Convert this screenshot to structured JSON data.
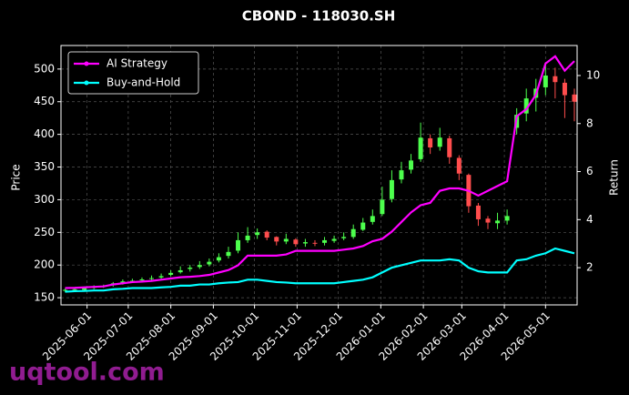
{
  "chart_data": {
    "type": "candlestick",
    "title": "CBOND - 118030.SH",
    "ylabel": "Price",
    "y2label": "Return",
    "watermark": "uqtool.com",
    "up_color": "#4dff4d",
    "down_color": "#ff4d4d",
    "grid": true,
    "legend": "upper left",
    "x": [
      "2025-05-16",
      "2025-05-23",
      "2025-05-30",
      "2025-06-06",
      "2025-06-13",
      "2025-06-20",
      "2025-06-27",
      "2025-07-04",
      "2025-07-11",
      "2025-07-18",
      "2025-07-25",
      "2025-08-01",
      "2025-08-08",
      "2025-08-15",
      "2025-08-22",
      "2025-08-29",
      "2025-09-05",
      "2025-09-12",
      "2025-09-19",
      "2025-09-26",
      "2025-10-03",
      "2025-10-10",
      "2025-10-17",
      "2025-10-24",
      "2025-10-31",
      "2025-11-07",
      "2025-11-14",
      "2025-11-21",
      "2025-11-28",
      "2025-12-05",
      "2025-12-12",
      "2025-12-19",
      "2025-12-26",
      "2026-01-02",
      "2026-01-09",
      "2026-01-16",
      "2026-01-23",
      "2026-01-30",
      "2026-02-06",
      "2026-02-13",
      "2026-02-20",
      "2026-02-27",
      "2026-03-06",
      "2026-03-13",
      "2026-03-20",
      "2026-03-27",
      "2026-04-03",
      "2026-04-10",
      "2026-04-17",
      "2026-04-24",
      "2026-05-01",
      "2026-05-08",
      "2026-05-15",
      "2026-05-22"
    ],
    "open": [
      161,
      163,
      162,
      165,
      167,
      169,
      172,
      175,
      177,
      179,
      181,
      185,
      189,
      194,
      197,
      201,
      207,
      214,
      222,
      238,
      246,
      251,
      243,
      236,
      239,
      233,
      234,
      234,
      237,
      241,
      243,
      254,
      266,
      278,
      301,
      331,
      346,
      362,
      394,
      381,
      394,
      364,
      338,
      291,
      271,
      264,
      268,
      410,
      432,
      456,
      472,
      489,
      479,
      461
    ],
    "high": [
      164,
      166,
      167,
      169,
      170,
      174,
      178,
      179,
      181,
      184,
      187,
      192,
      198,
      200,
      206,
      210,
      218,
      228,
      250,
      258,
      256,
      253,
      244,
      248,
      241,
      240,
      238,
      243,
      245,
      250,
      262,
      272,
      285,
      320,
      345,
      358,
      370,
      418,
      400,
      410,
      398,
      368,
      340,
      295,
      275,
      280,
      285,
      440,
      470,
      485,
      510,
      502,
      485,
      470
    ],
    "low": [
      159,
      160,
      160,
      163,
      165,
      167,
      170,
      173,
      174,
      177,
      179,
      183,
      187,
      190,
      194,
      198,
      204,
      210,
      218,
      234,
      240,
      238,
      230,
      232,
      228,
      228,
      229,
      230,
      234,
      238,
      240,
      252,
      262,
      275,
      296,
      325,
      340,
      358,
      370,
      375,
      355,
      330,
      280,
      260,
      255,
      255,
      262,
      400,
      420,
      435,
      460,
      455,
      425,
      420
    ],
    "close": [
      162,
      163,
      165,
      167,
      168,
      172,
      175,
      176,
      178,
      180,
      183,
      188,
      192,
      196,
      200,
      205,
      212,
      220,
      238,
      245,
      250,
      242,
      236,
      240,
      232,
      235,
      233,
      238,
      240,
      243,
      255,
      265,
      275,
      300,
      330,
      345,
      360,
      395,
      380,
      395,
      365,
      340,
      290,
      270,
      265,
      268,
      275,
      430,
      455,
      470,
      490,
      480,
      460,
      450
    ],
    "series": [
      {
        "name": "AI Strategy",
        "color": "#ff00ff",
        "axis": "y2",
        "values": [
          1.15,
          1.16,
          1.18,
          1.2,
          1.22,
          1.3,
          1.35,
          1.4,
          1.42,
          1.45,
          1.5,
          1.55,
          1.6,
          1.62,
          1.65,
          1.7,
          1.8,
          1.9,
          2.1,
          2.5,
          2.5,
          2.5,
          2.5,
          2.55,
          2.7,
          2.7,
          2.7,
          2.7,
          2.7,
          2.75,
          2.8,
          2.9,
          3.1,
          3.2,
          3.5,
          3.9,
          4.3,
          4.6,
          4.7,
          5.2,
          5.3,
          5.3,
          5.2,
          5.0,
          5.2,
          5.4,
          5.6,
          8.3,
          8.6,
          9.2,
          10.5,
          10.8,
          10.2,
          10.6
        ]
      },
      {
        "name": "Buy-and-Hold",
        "color": "#00ffff",
        "axis": "y2",
        "values": [
          1.0,
          1.02,
          1.03,
          1.05,
          1.05,
          1.1,
          1.12,
          1.15,
          1.15,
          1.15,
          1.18,
          1.2,
          1.25,
          1.25,
          1.3,
          1.3,
          1.35,
          1.38,
          1.4,
          1.5,
          1.5,
          1.45,
          1.4,
          1.38,
          1.35,
          1.35,
          1.35,
          1.35,
          1.35,
          1.4,
          1.45,
          1.5,
          1.6,
          1.8,
          2.0,
          2.1,
          2.2,
          2.3,
          2.3,
          2.3,
          2.35,
          2.3,
          2.0,
          1.85,
          1.8,
          1.8,
          1.8,
          2.3,
          2.35,
          2.5,
          2.6,
          2.8,
          2.7,
          2.6
        ]
      }
    ],
    "xlim": [
      "2025-05-13",
      "2026-05-24"
    ],
    "xticks": [
      "2025-06-01",
      "2025-07-01",
      "2025-08-01",
      "2025-09-01",
      "2025-10-01",
      "2025-11-01",
      "2025-12-01",
      "2026-01-01",
      "2026-02-01",
      "2026-03-01",
      "2026-04-01",
      "2026-05-01"
    ],
    "ylim": [
      139,
      536
    ],
    "yticks": [
      150,
      200,
      250,
      300,
      350,
      400,
      450,
      500
    ],
    "y2lim": [
      0.45,
      11.25
    ],
    "y2ticks": [
      2,
      4,
      6,
      8,
      10
    ]
  }
}
